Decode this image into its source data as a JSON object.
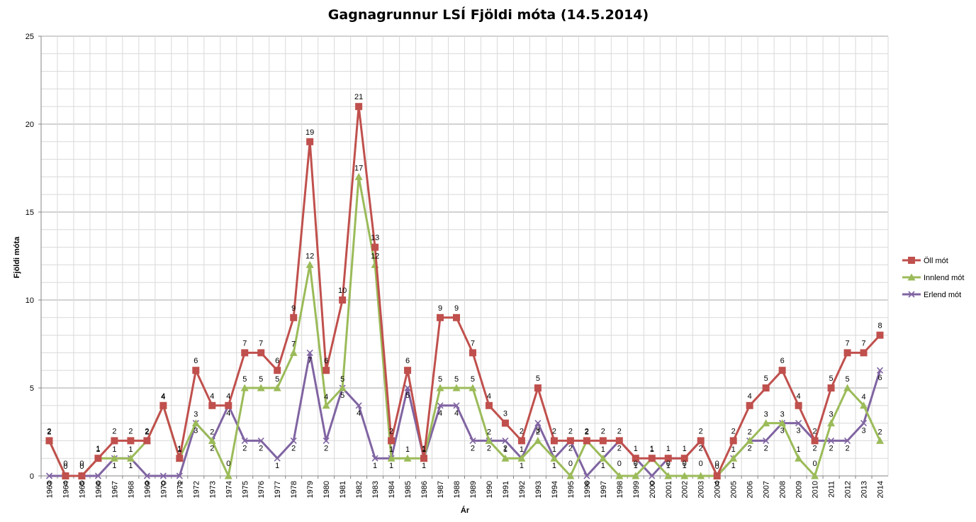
{
  "chart_data": {
    "type": "line",
    "title": "Gagnagrunnur LSÍ Fjöldi móta (14.5.2014)",
    "xlabel": "Ár",
    "ylabel": "Fjöldi móta",
    "ylim": [
      0,
      25
    ],
    "yticks": [
      0,
      5,
      10,
      15,
      20,
      25
    ],
    "grid": true,
    "legend": "right",
    "categories": [
      "1963",
      "1964",
      "1965",
      "1966",
      "1967",
      "1968",
      "1969",
      "1970",
      "1971",
      "1972",
      "1973",
      "1974",
      "1975",
      "1976",
      "1977",
      "1978",
      "1979",
      "1980",
      "1981",
      "1982",
      "1983",
      "1984",
      "1985",
      "1986",
      "1987",
      "1988",
      "1989",
      "1990",
      "1991",
      "1992",
      "1993",
      "1994",
      "1995",
      "1996",
      "1997",
      "1998",
      "1999",
      "2000",
      "2001",
      "2002",
      "2003",
      "2004",
      "2005",
      "2006",
      "2007",
      "2008",
      "2009",
      "2010",
      "2011",
      "2012",
      "2013",
      "2014"
    ],
    "series": [
      {
        "name": "Öll mót",
        "color": "#C0504D",
        "marker": "square",
        "values": [
          2,
          0,
          0,
          1,
          2,
          2,
          2,
          4,
          1,
          6,
          4,
          4,
          7,
          7,
          6,
          9,
          19,
          6,
          10,
          21,
          13,
          2,
          6,
          1,
          9,
          9,
          7,
          4,
          3,
          2,
          5,
          2,
          2,
          2,
          2,
          2,
          1,
          1,
          1,
          1,
          2,
          0,
          2,
          4,
          5,
          6,
          4,
          2,
          5,
          7,
          7,
          8
        ]
      },
      {
        "name": "Innlend mót",
        "color": "#9BBB59",
        "marker": "triangle",
        "values": [
          2,
          0,
          0,
          1,
          1,
          1,
          2,
          4,
          1,
          3,
          2,
          0,
          5,
          5,
          5,
          7,
          12,
          4,
          5,
          17,
          12,
          1,
          1,
          1,
          5,
          5,
          5,
          2,
          1,
          1,
          2,
          1,
          0,
          2,
          1,
          0,
          0,
          1,
          0,
          0,
          0,
          0,
          1,
          2,
          3,
          3,
          1,
          0,
          3,
          5,
          4,
          2
        ]
      },
      {
        "name": "Erlend mót",
        "color": "#8064A2",
        "marker": "x",
        "values": [
          0,
          0,
          0,
          0,
          1,
          1,
          0,
          0,
          0,
          3,
          2,
          4,
          2,
          2,
          1,
          2,
          7,
          2,
          5,
          4,
          1,
          1,
          5,
          1,
          4,
          4,
          2,
          2,
          2,
          1,
          3,
          1,
          2,
          0,
          1,
          2,
          1,
          0,
          1,
          1,
          2,
          0,
          1,
          2,
          2,
          3,
          3,
          2,
          2,
          2,
          3,
          6
        ]
      }
    ]
  }
}
